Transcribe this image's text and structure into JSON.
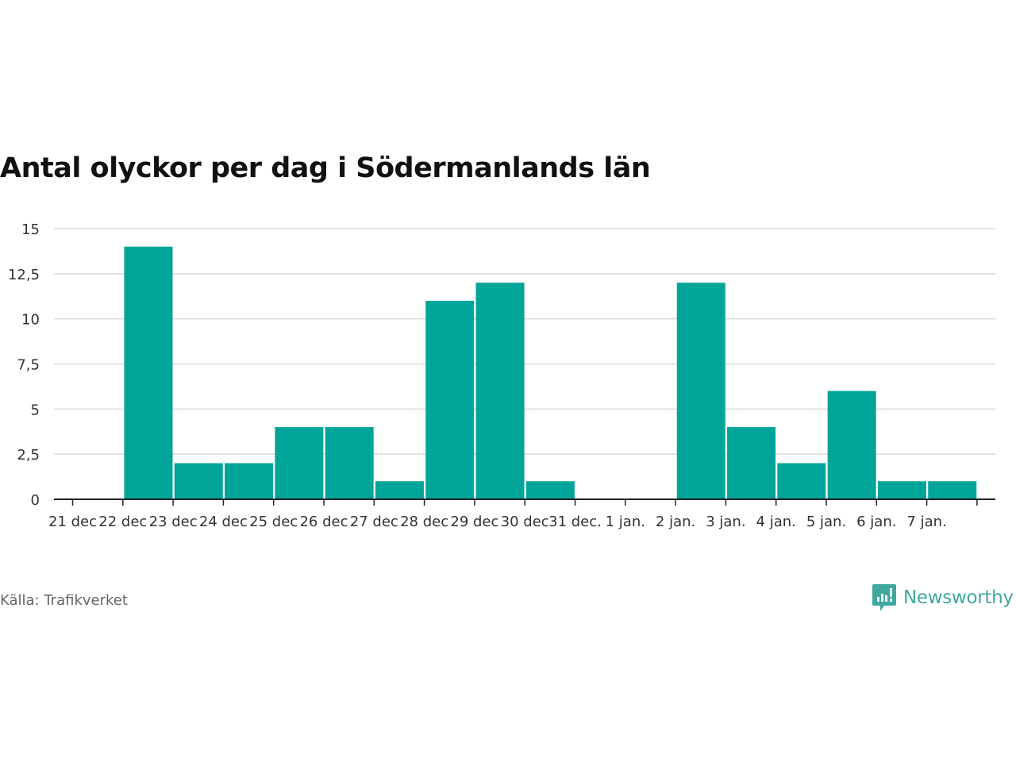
{
  "title": "Antal olyckor per dag i Södermanlands län",
  "source": "Källa: Trafikverket",
  "brand": "Newsworthy",
  "colors": {
    "bar": "#00a499",
    "grid": "#d9d9d9",
    "axis": "#222222",
    "brand": "#3fa8a0"
  },
  "chart_data": {
    "type": "bar",
    "title": "Antal olyckor per dag i Södermanlands län",
    "xlabel": "",
    "ylabel": "",
    "ylim": [
      0,
      15
    ],
    "yticks": [
      0,
      2.5,
      5,
      7.5,
      10,
      12.5,
      15
    ],
    "ytick_labels": [
      "0",
      "2,5",
      "5",
      "7,5",
      "10",
      "12,5",
      "15"
    ],
    "grid": true,
    "categories": [
      "21 dec",
      "22 dec",
      "23 dec",
      "24 dec",
      "25 dec",
      "26 dec",
      "27 dec",
      "28 dec",
      "29 dec",
      "30 dec",
      "31 dec.",
      "1 jan.",
      "2 jan.",
      "3 jan.",
      "4 jan.",
      "5 jan.",
      "6 jan.",
      "7 jan."
    ],
    "values": [
      0,
      14,
      2,
      2,
      4,
      4,
      1,
      11,
      12,
      1,
      0,
      0,
      12,
      4,
      2,
      6,
      1,
      1
    ]
  }
}
